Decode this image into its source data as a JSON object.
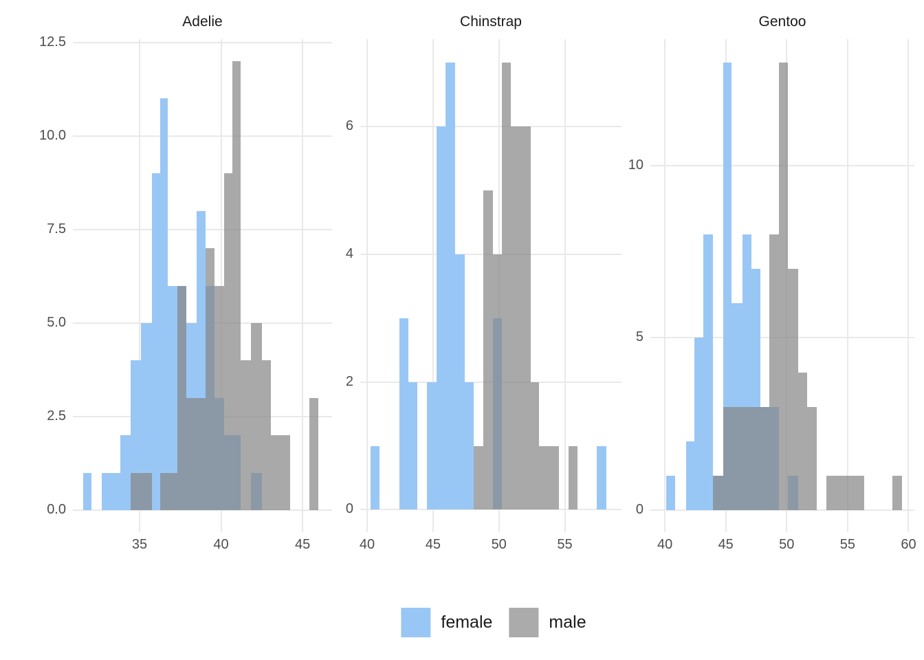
{
  "figure": {
    "background": "#ffffff",
    "gridline_color": "#e9e9e9",
    "axis_text_color": "#4d4d4d",
    "title_text_color": "#1a1a1a"
  },
  "legend": {
    "items": [
      {
        "label": "female",
        "color": "#99c7f5"
      },
      {
        "label": "male",
        "color": "#ababab"
      }
    ]
  },
  "chart_data": {
    "type": "bar",
    "subtype": "overlaid-histogram-facets",
    "facet_titles": [
      "Adelie",
      "Chinstrap",
      "Gentoo"
    ],
    "series": [
      "female",
      "male"
    ],
    "series_colors": {
      "female": "#99c7f5",
      "male_overlay": "rgba(133,133,133,0.70)",
      "male_flat": "#ababab"
    },
    "legend_position": "bottom",
    "grid": "major-only",
    "panels": [
      {
        "title": "Adelie",
        "xlim": [
          30.91,
          46.81
        ],
        "ylim": [
          -0.59,
          12.59
        ],
        "x_ticks": [
          {
            "v": 35,
            "label": "35"
          },
          {
            "v": 40,
            "label": "40"
          },
          {
            "v": 45,
            "label": "45"
          }
        ],
        "y_ticks": [
          {
            "v": 0,
            "label": "0.0"
          },
          {
            "v": 2.5,
            "label": "2.5"
          },
          {
            "v": 5,
            "label": "5.0"
          },
          {
            "v": 7.5,
            "label": "7.5"
          },
          {
            "v": 10,
            "label": "10.0"
          },
          {
            "v": 12.5,
            "label": "12.5"
          }
        ],
        "bins": [
          [
            31.55,
            32.05,
            1,
            0
          ],
          [
            32.7,
            33.25,
            1,
            0
          ],
          [
            33.25,
            33.8,
            1,
            0
          ],
          [
            33.8,
            34.45,
            2,
            0
          ],
          [
            34.45,
            35.1,
            4,
            1
          ],
          [
            35.1,
            35.75,
            5,
            1
          ],
          [
            35.75,
            36.25,
            9,
            0
          ],
          [
            36.25,
            36.75,
            11,
            1
          ],
          [
            36.75,
            37.3,
            6,
            1
          ],
          [
            37.3,
            37.85,
            6,
            6
          ],
          [
            37.85,
            38.5,
            5,
            3
          ],
          [
            38.5,
            39.05,
            8,
            3
          ],
          [
            39.05,
            39.6,
            6,
            7
          ],
          [
            39.6,
            40.2,
            3,
            6
          ],
          [
            40.2,
            40.7,
            2,
            9
          ],
          [
            40.7,
            41.2,
            2,
            12
          ],
          [
            41.2,
            41.85,
            0,
            4
          ],
          [
            41.85,
            42.5,
            1,
            5
          ],
          [
            42.5,
            43.05,
            0,
            4
          ],
          [
            43.05,
            43.65,
            0,
            2
          ],
          [
            43.65,
            44.25,
            0,
            2
          ],
          [
            45.4,
            45.95,
            0,
            3
          ]
        ]
      },
      {
        "title": "Chinstrap",
        "xlim": [
          39.48,
          59.3
        ],
        "ylim": [
          -0.35,
          7.37
        ],
        "x_ticks": [
          {
            "v": 40,
            "label": "40"
          },
          {
            "v": 45,
            "label": "45"
          },
          {
            "v": 50,
            "label": "50"
          },
          {
            "v": 55,
            "label": "55"
          }
        ],
        "y_ticks": [
          {
            "v": 0,
            "label": "0"
          },
          {
            "v": 2,
            "label": "2"
          },
          {
            "v": 4,
            "label": "4"
          },
          {
            "v": 6,
            "label": "6"
          }
        ],
        "bins": [
          [
            40.26,
            40.94,
            1,
            0
          ],
          [
            42.45,
            43.13,
            3,
            0
          ],
          [
            43.13,
            43.81,
            2,
            0
          ],
          [
            44.54,
            45.27,
            2,
            0
          ],
          [
            45.27,
            45.95,
            6,
            0
          ],
          [
            45.95,
            46.68,
            7,
            0
          ],
          [
            46.68,
            47.41,
            4,
            0
          ],
          [
            47.41,
            48.08,
            2,
            0
          ],
          [
            48.08,
            48.82,
            0,
            1
          ],
          [
            48.82,
            49.55,
            0,
            5
          ],
          [
            49.55,
            50.22,
            3,
            4
          ],
          [
            50.22,
            50.9,
            0,
            7
          ],
          [
            50.9,
            51.63,
            0,
            6
          ],
          [
            51.63,
            52.41,
            0,
            6
          ],
          [
            52.41,
            53.04,
            0,
            2
          ],
          [
            53.04,
            53.77,
            0,
            1
          ],
          [
            53.77,
            54.55,
            0,
            1
          ],
          [
            55.28,
            55.96,
            0,
            1
          ],
          [
            57.42,
            58.15,
            1,
            0
          ]
        ]
      },
      {
        "title": "Gentoo",
        "xlim": [
          38.81,
          60.48
        ],
        "ylim": [
          -0.64,
          13.67
        ],
        "x_ticks": [
          {
            "v": 40,
            "label": "40"
          },
          {
            "v": 45,
            "label": "45"
          },
          {
            "v": 50,
            "label": "50"
          },
          {
            "v": 55,
            "label": "55"
          },
          {
            "v": 60,
            "label": "60"
          }
        ],
        "y_ticks": [
          {
            "v": 0,
            "label": "0"
          },
          {
            "v": 5,
            "label": "5"
          },
          {
            "v": 10,
            "label": "10"
          }
        ],
        "bins": [
          [
            40.11,
            40.85,
            1,
            0
          ],
          [
            41.75,
            42.43,
            2,
            0
          ],
          [
            42.43,
            43.16,
            5,
            0
          ],
          [
            43.16,
            43.95,
            8,
            0
          ],
          [
            43.95,
            44.8,
            1,
            1
          ],
          [
            44.8,
            45.47,
            13,
            3
          ],
          [
            45.47,
            46.38,
            6,
            3
          ],
          [
            46.38,
            47.11,
            8,
            3
          ],
          [
            47.11,
            47.84,
            7,
            3
          ],
          [
            47.84,
            48.58,
            3,
            3
          ],
          [
            48.58,
            49.37,
            3,
            8
          ],
          [
            49.37,
            50.1,
            0,
            13
          ],
          [
            50.1,
            50.95,
            1,
            7
          ],
          [
            50.95,
            51.68,
            0,
            4
          ],
          [
            51.68,
            52.47,
            0,
            3
          ],
          [
            53.26,
            54.0,
            0,
            1
          ],
          [
            54.0,
            54.79,
            0,
            1
          ],
          [
            54.79,
            55.58,
            0,
            1
          ],
          [
            55.58,
            56.37,
            0,
            1
          ],
          [
            58.68,
            59.47,
            0,
            1
          ]
        ]
      }
    ]
  }
}
